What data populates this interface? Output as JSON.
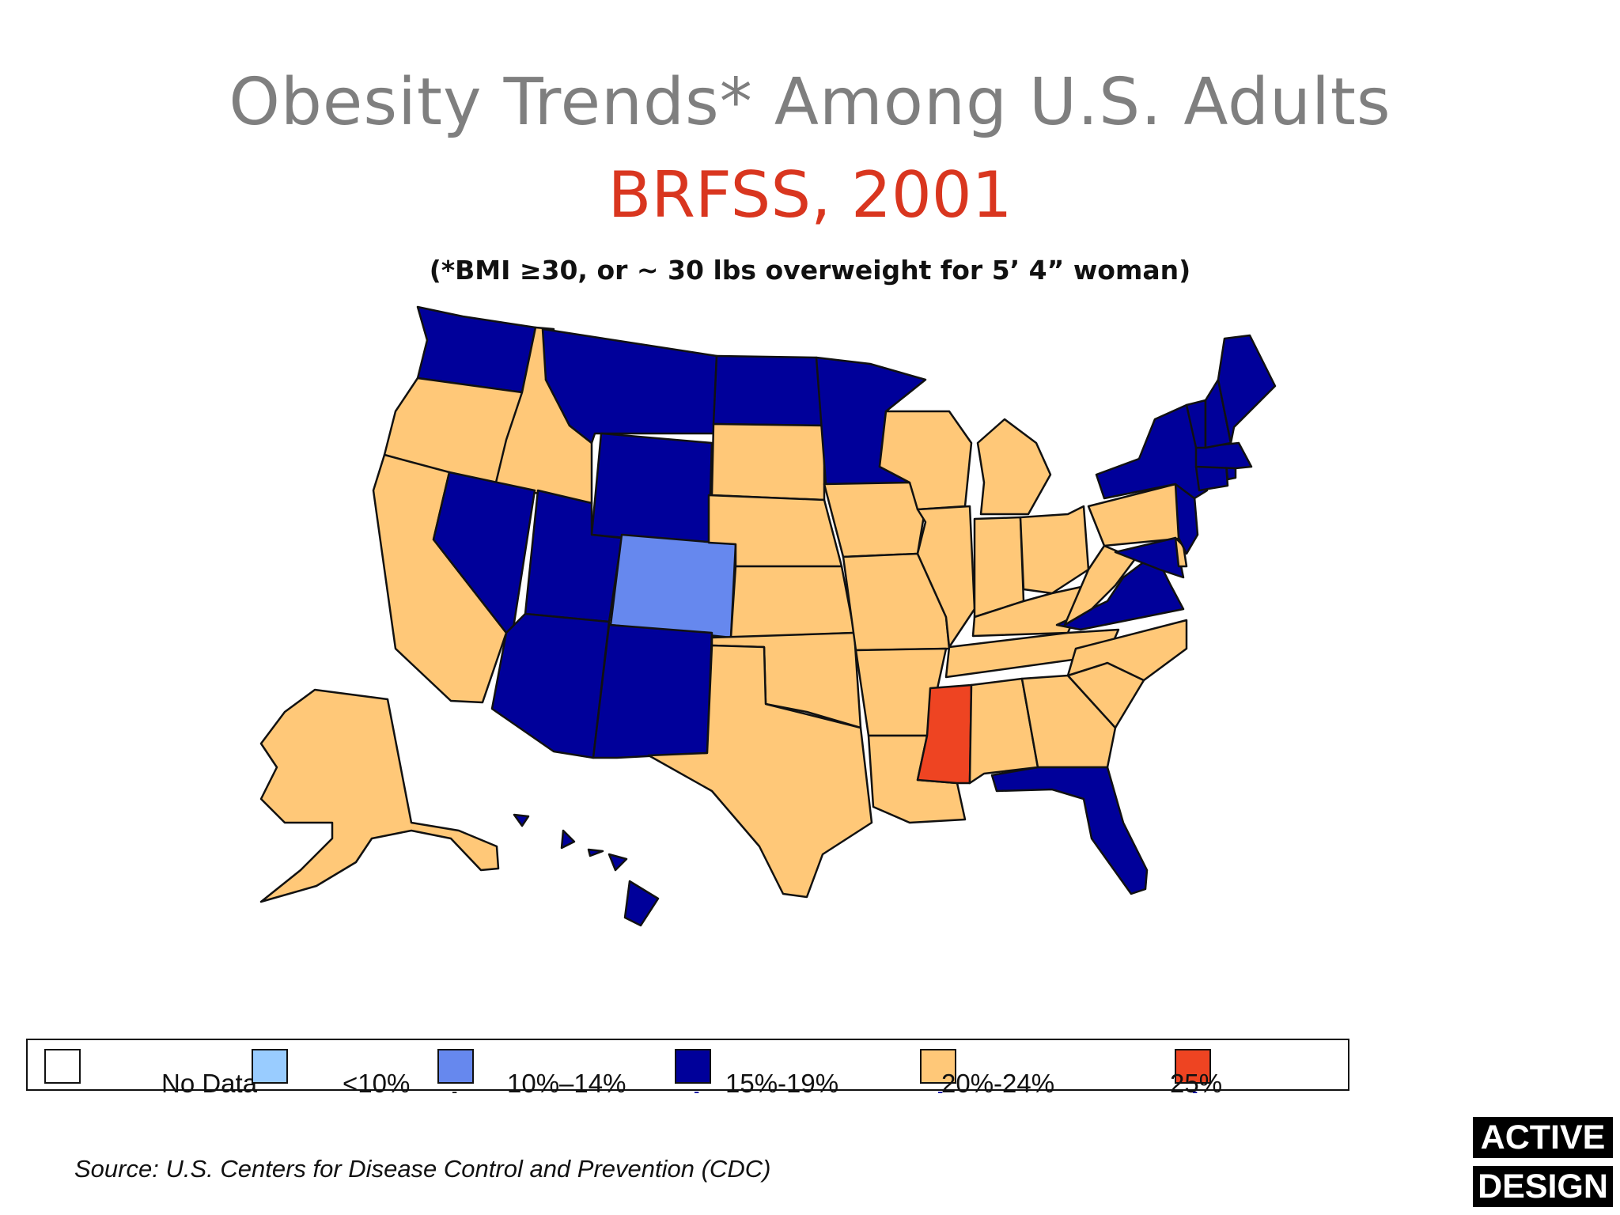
{
  "title": "Obesity Trends* Among U.S. Adults",
  "subtitle": "BRFSS, 2001",
  "note": "(*BMI ≥30, or ~ 30 lbs overweight for 5’ 4” woman)",
  "legend": [
    {
      "label": "No Data",
      "color": "#ffffff"
    },
    {
      "label": "<10%",
      "color": "#99ccff"
    },
    {
      "label": "10%–14%",
      "color": "#6688ee"
    },
    {
      "label": "15%-19%",
      "color": "#00009a"
    },
    {
      "label": "20%-24%",
      "color": "#ffc878"
    },
    {
      "label": "25%",
      "color": "#ee4422"
    }
  ],
  "states": {
    "WA": "15%-19%",
    "OR": "20%-24%",
    "CA": "20%-24%",
    "ID": "20%-24%",
    "NV": "15%-19%",
    "MT": "15%-19%",
    "WY": "15%-19%",
    "UT": "15%-19%",
    "AZ": "15%-19%",
    "CO": "10%–14%",
    "NM": "15%-19%",
    "ND": "15%-19%",
    "SD": "20%-24%",
    "NE": "20%-24%",
    "KS": "20%-24%",
    "OK": "20%-24%",
    "TX": "20%-24%",
    "MN": "15%-19%",
    "IA": "20%-24%",
    "MO": "20%-24%",
    "AR": "20%-24%",
    "LA": "20%-24%",
    "WI": "20%-24%",
    "IL": "20%-24%",
    "MI": "20%-24%",
    "IN": "20%-24%",
    "OH": "20%-24%",
    "KY": "20%-24%",
    "TN": "20%-24%",
    "MS": "25%",
    "AL": "20%-24%",
    "GA": "20%-24%",
    "FL": "15%-19%",
    "SC": "20%-24%",
    "NC": "20%-24%",
    "VA": "15%-19%",
    "WV": "20%-24%",
    "PA": "20%-24%",
    "NY": "15%-19%",
    "NJ": "15%-19%",
    "DE": "20%-24%",
    "MD": "15%-19%",
    "CT": "15%-19%",
    "RI": "15%-19%",
    "MA": "15%-19%",
    "VT": "15%-19%",
    "NH": "15%-19%",
    "ME": "15%-19%",
    "AK": "20%-24%",
    "HI": "15%-19%"
  },
  "source": "Source: U.S. Centers for Disease Control and Prevention (CDC)",
  "logo": {
    "line1": "ACTIVE",
    "line2": "DESIGN"
  }
}
